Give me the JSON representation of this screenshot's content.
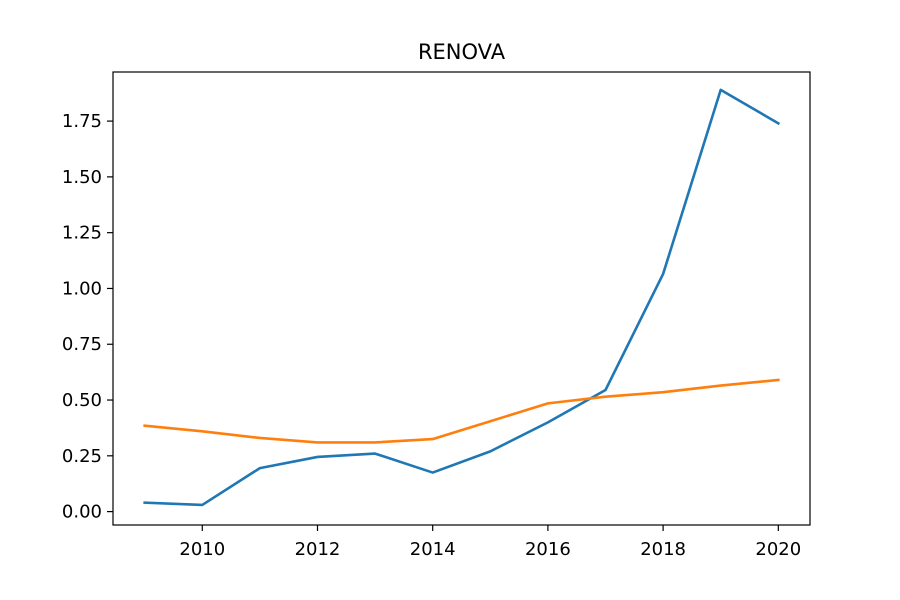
{
  "chart_data": {
    "type": "line",
    "title": "RENOVA",
    "xlabel": "",
    "ylabel": "",
    "x": [
      2009,
      2010,
      2011,
      2012,
      2013,
      2014,
      2015,
      2016,
      2017,
      2018,
      2019,
      2020
    ],
    "xlim": [
      2008.45,
      2020.55
    ],
    "ylim": [
      -0.06,
      1.97
    ],
    "xticks": [
      2010,
      2012,
      2014,
      2016,
      2018,
      2020
    ],
    "xtick_labels": [
      "2010",
      "2012",
      "2014",
      "2016",
      "2018",
      "2020"
    ],
    "yticks": [
      0.0,
      0.25,
      0.5,
      0.75,
      1.0,
      1.25,
      1.5,
      1.75
    ],
    "ytick_labels": [
      "0.00",
      "0.25",
      "0.50",
      "0.75",
      "1.00",
      "1.25",
      "1.50",
      "1.75"
    ],
    "grid": false,
    "legend": "none",
    "series": [
      {
        "color": "#1f77b4",
        "values": [
          0.04,
          0.03,
          0.195,
          0.245,
          0.26,
          0.175,
          0.27,
          0.4,
          0.545,
          1.065,
          1.89,
          1.74
        ]
      },
      {
        "color": "#ff7f0e",
        "values": [
          0.385,
          0.36,
          0.33,
          0.31,
          0.31,
          0.325,
          0.405,
          0.485,
          0.515,
          0.535,
          0.565,
          0.59
        ]
      }
    ]
  }
}
